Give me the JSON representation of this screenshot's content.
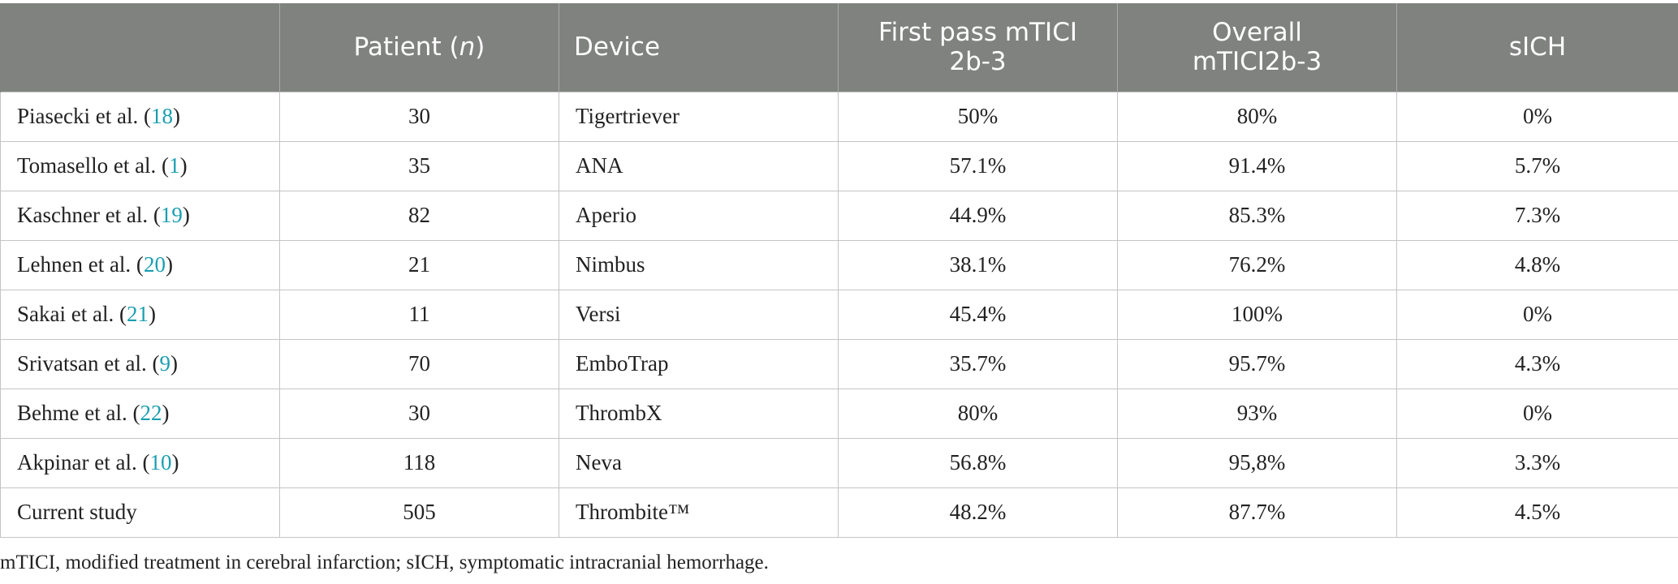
{
  "table": {
    "headers": [
      {
        "text": "",
        "italic": ""
      },
      {
        "text": "Patient (",
        "italic": "n",
        "after": ")"
      },
      {
        "text": "Device"
      },
      {
        "line1": "First pass mTICI",
        "line2": "2b-3"
      },
      {
        "line1": "Overall",
        "line2": "mTICI2b-3"
      },
      {
        "text": "sICH"
      }
    ],
    "rows": [
      {
        "author": "Piasecki et al. (",
        "ref": "18",
        "close": ")",
        "patients": "30",
        "device": "Tigertriever",
        "first_pass": "50%",
        "overall": "80%",
        "sich": "0%"
      },
      {
        "author": "Tomasello et al. (",
        "ref": "1",
        "close": ")",
        "patients": "35",
        "device": "ANA",
        "first_pass": "57.1%",
        "overall": "91.4%",
        "sich": "5.7%"
      },
      {
        "author": "Kaschner et al. (",
        "ref": "19",
        "close": ")",
        "patients": "82",
        "device": "Aperio",
        "first_pass": "44.9%",
        "overall": "85.3%",
        "sich": "7.3%"
      },
      {
        "author": "Lehnen et al. (",
        "ref": "20",
        "close": ")",
        "patients": "21",
        "device": "Nimbus",
        "first_pass": "38.1%",
        "overall": "76.2%",
        "sich": "4.8%"
      },
      {
        "author": "Sakai et al. (",
        "ref": "21",
        "close": ")",
        "patients": "11",
        "device": "Versi",
        "first_pass": "45.4%",
        "overall": "100%",
        "sich": "0%"
      },
      {
        "author": "Srivatsan et al. (",
        "ref": "9",
        "close": ")",
        "patients": "70",
        "device": "EmboTrap",
        "first_pass": "35.7%",
        "overall": "95.7%",
        "sich": "4.3%"
      },
      {
        "author": "Behme et al. (",
        "ref": "22",
        "close": ")",
        "patients": "30",
        "device": "ThrombX",
        "first_pass": "80%",
        "overall": "93%",
        "sich": "0%"
      },
      {
        "author": "Akpinar et al. (",
        "ref": "10",
        "close": ")",
        "patients": "118",
        "device": "Neva",
        "first_pass": "56.8%",
        "overall": "95,8%",
        "sich": "3.3%"
      },
      {
        "author": "Current study",
        "ref": "",
        "close": "",
        "patients": "505",
        "device": "Thrombite™",
        "first_pass": "48.2%",
        "overall": "87.7%",
        "sich": "4.5%"
      }
    ]
  },
  "footnote": "mTICI, modified treatment in cerebral infarction; sICH, symptomatic intracranial hemorrhage.",
  "colors": {
    "header_bg": "#808280",
    "header_text": "#ffffff",
    "ref_link": "#1a9eb1",
    "border": "#c4c4c4"
  }
}
